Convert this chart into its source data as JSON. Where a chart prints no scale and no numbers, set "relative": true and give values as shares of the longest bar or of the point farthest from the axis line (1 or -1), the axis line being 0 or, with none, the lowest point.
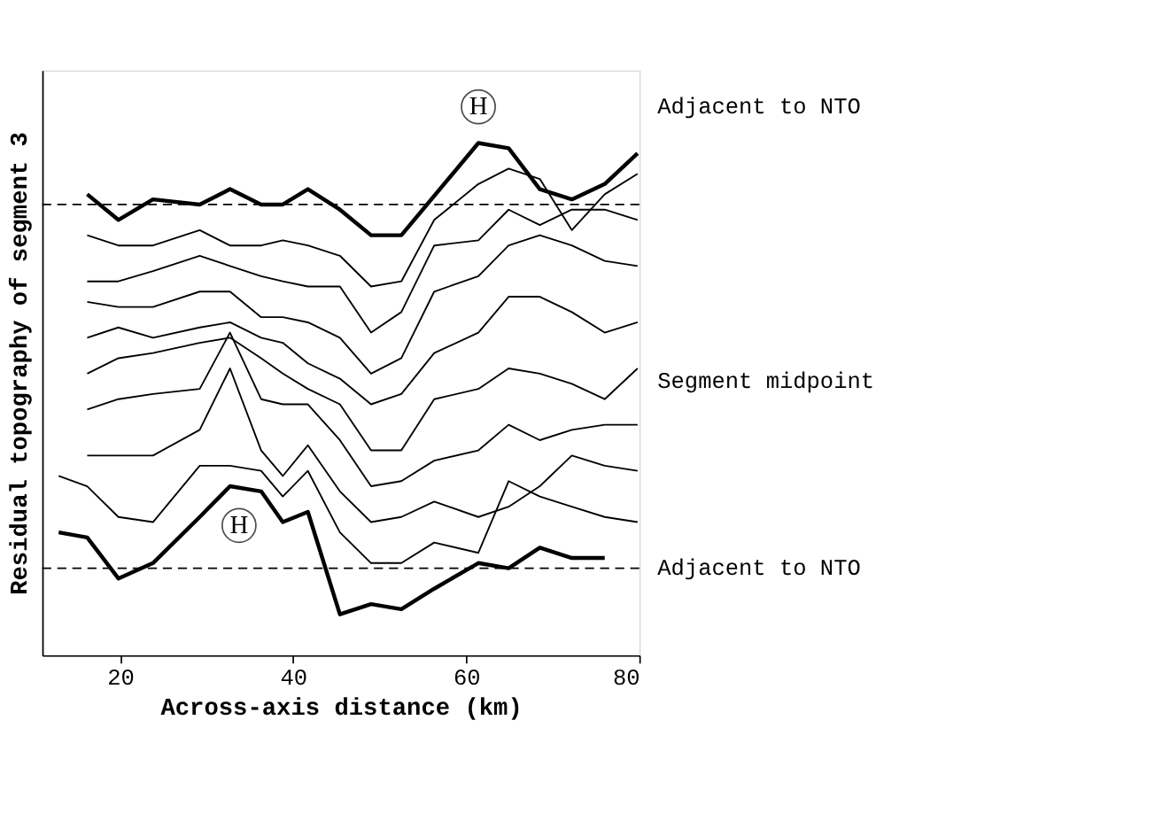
{
  "chart_data": {
    "type": "line",
    "relative": true,
    "xlabel": "Across-axis distance (km)",
    "ylabel": "Residual topography of segment 3",
    "xlim": [
      11,
      80
    ],
    "xticks": [
      20,
      40,
      60,
      80
    ],
    "grid": false,
    "series": [
      {
        "color": "#000000",
        "x": [
          16.2,
          19.8,
          23.8,
          29.2,
          32.7,
          36.3,
          38.8,
          41.7,
          45.4,
          49.0,
          52.5,
          61.4,
          64.9,
          68.5,
          72.2,
          76.0,
          79.8
        ],
        "values": [
          0.9,
          0.85,
          0.89,
          0.88,
          0.91,
          0.88,
          0.88,
          0.91,
          0.87,
          0.82,
          0.82,
          1.0,
          0.99,
          0.91,
          0.89,
          0.92,
          0.98
        ]
      },
      {
        "color": "#000000",
        "x": [
          16.2,
          19.8,
          23.8,
          29.2,
          32.7,
          36.3,
          38.8,
          41.7,
          45.4,
          49.0,
          52.5,
          56.3,
          61.4,
          64.9,
          68.5,
          72.2,
          76.0,
          79.8
        ],
        "values": [
          0.82,
          0.8,
          0.8,
          0.83,
          0.8,
          0.8,
          0.81,
          0.8,
          0.78,
          0.72,
          0.73,
          0.85,
          0.92,
          0.95,
          0.93,
          0.83,
          0.9,
          0.94
        ]
      },
      {
        "color": "#000000",
        "x": [
          16.2,
          19.8,
          23.8,
          29.2,
          32.7,
          36.3,
          38.8,
          41.7,
          45.4,
          49.0,
          52.5,
          56.3,
          61.4,
          64.9,
          68.5,
          72.2,
          76.0,
          79.8
        ],
        "values": [
          0.73,
          0.73,
          0.75,
          0.78,
          0.76,
          0.74,
          0.73,
          0.72,
          0.72,
          0.63,
          0.67,
          0.8,
          0.81,
          0.87,
          0.84,
          0.87,
          0.87,
          0.85
        ]
      },
      {
        "color": "#000000",
        "x": [
          16.2,
          19.8,
          23.8,
          29.2,
          32.7,
          36.3,
          38.8,
          41.7,
          45.4,
          49.0,
          52.5,
          56.3,
          61.4,
          64.9,
          68.5,
          72.2,
          76.0,
          79.8
        ],
        "values": [
          0.69,
          0.68,
          0.68,
          0.71,
          0.71,
          0.66,
          0.66,
          0.65,
          0.62,
          0.55,
          0.58,
          0.71,
          0.74,
          0.8,
          0.82,
          0.8,
          0.77,
          0.76
        ]
      },
      {
        "color": "#000000",
        "x": [
          16.2,
          19.8,
          23.8,
          29.2,
          32.7,
          36.3,
          38.8,
          41.7,
          45.4,
          49.0,
          52.5,
          56.3,
          61.4,
          64.9,
          68.5,
          72.2,
          76.0,
          79.8
        ],
        "values": [
          0.62,
          0.64,
          0.62,
          0.64,
          0.65,
          0.62,
          0.61,
          0.57,
          0.54,
          0.49,
          0.51,
          0.59,
          0.63,
          0.7,
          0.7,
          0.67,
          0.63,
          0.65
        ]
      },
      {
        "color": "#000000",
        "x": [
          16.2,
          19.8,
          23.8,
          29.2,
          32.7,
          36.3,
          38.8,
          41.7,
          45.4,
          49.0,
          52.5,
          56.3,
          61.4,
          64.9,
          68.5,
          72.2,
          76.0,
          79.8
        ],
        "values": [
          0.55,
          0.58,
          0.59,
          0.61,
          0.62,
          0.58,
          0.55,
          0.52,
          0.49,
          0.4,
          0.4,
          0.5,
          0.52,
          0.56,
          0.55,
          0.53,
          0.5,
          0.56
        ]
      },
      {
        "color": "#000000",
        "x": [
          16.2,
          19.8,
          23.8,
          29.2,
          32.7,
          36.3,
          38.8,
          41.7,
          45.4,
          49.0,
          52.5,
          56.3,
          61.4,
          64.9,
          68.5,
          72.2,
          76.0,
          79.8
        ],
        "values": [
          0.48,
          0.5,
          0.51,
          0.52,
          0.63,
          0.5,
          0.49,
          0.49,
          0.42,
          0.33,
          0.34,
          0.38,
          0.4,
          0.45,
          0.42,
          0.44,
          0.45,
          0.45
        ]
      },
      {
        "color": "#000000",
        "x": [
          16.2,
          19.8,
          23.8,
          29.2,
          32.7,
          36.3,
          38.8,
          41.7,
          45.4,
          49.0,
          52.5,
          56.3,
          61.4,
          64.9,
          68.5,
          72.2,
          76.0,
          79.8
        ],
        "values": [
          0.39,
          0.39,
          0.39,
          0.44,
          0.56,
          0.4,
          0.35,
          0.41,
          0.32,
          0.26,
          0.27,
          0.3,
          0.27,
          0.29,
          0.33,
          0.39,
          0.37,
          0.36
        ]
      },
      {
        "color": "#000000",
        "x": [
          12.9,
          16.2,
          19.8,
          23.8,
          29.2,
          32.7,
          36.3,
          38.8,
          41.7,
          45.4,
          49.0,
          52.5,
          56.3,
          61.4,
          64.9,
          68.5,
          72.2,
          76.0,
          79.8
        ],
        "values": [
          0.35,
          0.33,
          0.27,
          0.26,
          0.37,
          0.37,
          0.36,
          0.31,
          0.36,
          0.24,
          0.18,
          0.18,
          0.22,
          0.2,
          0.34,
          0.31,
          0.29,
          0.27,
          0.26
        ]
      },
      {
        "color": "#000000",
        "x": [
          12.9,
          16.2,
          19.8,
          23.8,
          29.2,
          32.7,
          36.3,
          38.8,
          41.7,
          45.4,
          49.0,
          52.5,
          56.3,
          61.4,
          64.9,
          68.5,
          72.2,
          76.0
        ],
        "values": [
          0.24,
          0.23,
          0.15,
          0.18,
          0.27,
          0.33,
          0.32,
          0.26,
          0.28,
          0.08,
          0.1,
          0.09,
          0.13,
          0.18,
          0.17,
          0.21,
          0.19,
          0.19
        ]
      }
    ],
    "ref_lines": [
      {
        "axis": "y",
        "value": 0.88,
        "color": "#000000",
        "line_style": "dashed"
      },
      {
        "axis": "y",
        "value": 0.17,
        "color": "#000000",
        "line_style": "dashed"
      }
    ],
    "annotations": [
      {
        "text": "H",
        "x": 61.4,
        "y": 1.0
      },
      {
        "text": "H",
        "x": 32.7,
        "y": 0.33
      },
      "Adjacent to NTO",
      "Segment midpoint",
      "Adjacent to NTO"
    ]
  }
}
